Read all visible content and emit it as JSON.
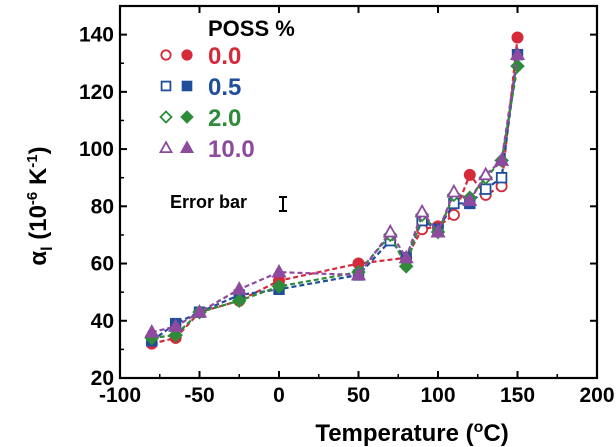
{
  "chart_data": {
    "type": "scatter",
    "xlabel_main": "Temperature (",
    "xlabel_sup": "o",
    "xlabel_tail": "C)",
    "ylabel_main": "α",
    "ylabel_sub": "l",
    "ylabel_unit_a": " (10",
    "ylabel_unit_sup": "-6",
    "ylabel_unit_b": " K",
    "ylabel_unit_sup2": "-1",
    "ylabel_unit_c": ")",
    "xlim": [
      -100,
      200
    ],
    "ylim": [
      20,
      150
    ],
    "xticks": [
      -100,
      -50,
      0,
      50,
      100,
      150,
      200
    ],
    "yticks": [
      20,
      40,
      60,
      80,
      100,
      120,
      140
    ],
    "legend_title": "POSS %",
    "annotation": "Error bar",
    "grid": false,
    "series": [
      {
        "name": "0.0",
        "color": "#d42a3a",
        "marker": "circle",
        "x": [
          -80,
          -65,
          -50,
          -25,
          0,
          50,
          80,
          90,
          100,
          110,
          120,
          130,
          140,
          150
        ],
        "y": [
          32,
          34,
          43,
          47,
          54,
          60,
          62,
          72,
          73,
          77,
          91,
          84,
          87,
          139
        ],
        "hollow_x": [
          90,
          110,
          130,
          140
        ]
      },
      {
        "name": "0.5",
        "color": "#1f4e9c",
        "marker": "square",
        "x": [
          -80,
          -65,
          -50,
          -25,
          0,
          50,
          70,
          80,
          90,
          100,
          110,
          120,
          130,
          140,
          150
        ],
        "y": [
          33,
          39,
          43,
          49,
          51,
          56,
          68,
          62,
          75,
          72,
          81,
          81,
          86,
          90,
          133
        ],
        "hollow_x": [
          70,
          90,
          110,
          130,
          140
        ]
      },
      {
        "name": "2.0",
        "color": "#2e8b3a",
        "marker": "diamond",
        "x": [
          -80,
          -65,
          -50,
          -25,
          0,
          50,
          70,
          80,
          90,
          100,
          110,
          120,
          130,
          140,
          150
        ],
        "y": [
          34,
          35,
          43,
          47,
          52,
          57,
          70,
          59,
          77,
          71,
          84,
          83,
          90,
          96,
          129
        ],
        "hollow_x": [
          70,
          90,
          110,
          130
        ]
      },
      {
        "name": "10.0",
        "color": "#8e4a9e",
        "marker": "triangle",
        "x": [
          -80,
          -65,
          -50,
          -25,
          0,
          50,
          70,
          80,
          90,
          100,
          110,
          120,
          130,
          140,
          150
        ],
        "y": [
          36,
          38,
          43,
          51,
          57,
          56,
          71,
          62,
          78,
          71,
          85,
          82,
          91,
          96,
          133
        ],
        "hollow_x": [
          70,
          90,
          110,
          130
        ]
      }
    ]
  }
}
